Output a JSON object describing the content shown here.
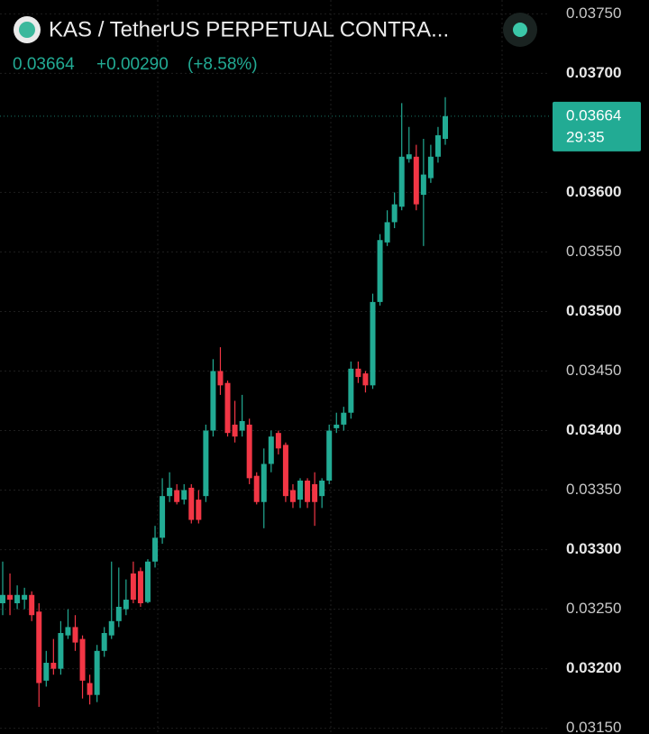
{
  "chart_data": {
    "type": "candlestick",
    "title": "KAS / TetherUS PERPETUAL CONTRA...",
    "price": "0.03664",
    "change": "+0.00290",
    "change_pct": "(+8.58%)",
    "price_tag": {
      "price": "0.03664",
      "countdown": "29:35"
    },
    "up_color": "#22ab94",
    "down_color": "#f23645",
    "grid": true,
    "ylim": [
      0.031452,
      0.037616
    ],
    "yticks": [
      {
        "value": 0.0375,
        "label": "0.03750"
      },
      {
        "value": 0.037,
        "label": "0.03700"
      },
      {
        "value": 0.036,
        "label": "0.03600"
      },
      {
        "value": 0.0355,
        "label": "0.03550"
      },
      {
        "value": 0.035,
        "label": "0.03500"
      },
      {
        "value": 0.0345,
        "label": "0.03450"
      },
      {
        "value": 0.034,
        "label": "0.03400"
      },
      {
        "value": 0.0335,
        "label": "0.03350"
      },
      {
        "value": 0.033,
        "label": "0.03300"
      },
      {
        "value": 0.0325,
        "label": "0.03250"
      },
      {
        "value": 0.032,
        "label": "0.03200"
      },
      {
        "value": 0.0315,
        "label": "0.03150"
      }
    ],
    "open": [
      0.03255,
      0.03262,
      0.03255,
      0.03258,
      0.03262,
      0.03248,
      0.0319,
      0.03205,
      0.032,
      0.03228,
      0.03235,
      0.03225,
      0.03188,
      0.03178,
      0.03215,
      0.03228,
      0.0324,
      0.0325,
      0.0328,
      0.03282,
      0.03256,
      0.0329,
      0.0331,
      0.03345,
      0.0335,
      0.03342,
      0.03352,
      0.03342,
      0.03345,
      0.034,
      0.0345,
      0.0344,
      0.03405,
      0.034,
      0.03405,
      0.03362,
      0.0334,
      0.03372,
      0.03398,
      0.03388,
      0.0335,
      0.03342,
      0.03358,
      0.03355,
      0.03345,
      0.03358,
      0.03402,
      0.03405,
      0.03415,
      0.03452,
      0.03448,
      0.03438,
      0.03508,
      0.03558,
      0.03575,
      0.03588,
      0.03628,
      0.0363,
      0.03598,
      0.03612,
      0.0363,
      0.03645
    ],
    "high": [
      0.0329,
      0.0328,
      0.0327,
      0.03268,
      0.03265,
      0.03255,
      0.03215,
      0.03225,
      0.0324,
      0.0325,
      0.03245,
      0.03228,
      0.03195,
      0.0322,
      0.03235,
      0.0329,
      0.03285,
      0.03275,
      0.0329,
      0.03285,
      0.03292,
      0.0332,
      0.0336,
      0.03365,
      0.03355,
      0.03355,
      0.03355,
      0.0335,
      0.03405,
      0.0346,
      0.0347,
      0.03442,
      0.03425,
      0.0343,
      0.0341,
      0.03365,
      0.03385,
      0.034,
      0.034,
      0.0339,
      0.03355,
      0.0336,
      0.0336,
      0.03365,
      0.0336,
      0.03405,
      0.03415,
      0.0342,
      0.03458,
      0.03458,
      0.0345,
      0.03515,
      0.03565,
      0.03585,
      0.036,
      0.03675,
      0.03655,
      0.0364,
      0.03645,
      0.0364,
      0.03655,
      0.0368
    ],
    "low": [
      0.03245,
      0.03245,
      0.0325,
      0.0325,
      0.0324,
      0.03168,
      0.03185,
      0.03195,
      0.03195,
      0.03225,
      0.03215,
      0.03175,
      0.0317,
      0.03172,
      0.0321,
      0.03225,
      0.03235,
      0.03245,
      0.03255,
      0.03252,
      0.03255,
      0.03285,
      0.03305,
      0.0334,
      0.03338,
      0.03338,
      0.03322,
      0.03322,
      0.0334,
      0.03395,
      0.0343,
      0.03395,
      0.0339,
      0.03395,
      0.03355,
      0.03338,
      0.03318,
      0.03365,
      0.0338,
      0.0334,
      0.03335,
      0.03335,
      0.03335,
      0.0332,
      0.03335,
      0.03355,
      0.03398,
      0.034,
      0.0341,
      0.0344,
      0.03432,
      0.03435,
      0.03505,
      0.03555,
      0.0357,
      0.03585,
      0.03625,
      0.03585,
      0.03555,
      0.03608,
      0.03625,
      0.0364
    ],
    "close": [
      0.03262,
      0.03258,
      0.03262,
      0.03262,
      0.03245,
      0.03188,
      0.03205,
      0.032,
      0.0323,
      0.03235,
      0.03222,
      0.0319,
      0.03178,
      0.03215,
      0.0323,
      0.0324,
      0.03252,
      0.03258,
      0.03258,
      0.03255,
      0.0329,
      0.0331,
      0.03345,
      0.03352,
      0.0334,
      0.0335,
      0.03325,
      0.03325,
      0.034,
      0.0345,
      0.03438,
      0.03398,
      0.03395,
      0.03408,
      0.0336,
      0.0334,
      0.03372,
      0.03395,
      0.03385,
      0.03345,
      0.0334,
      0.03358,
      0.0334,
      0.0334,
      0.03358,
      0.034,
      0.03405,
      0.03415,
      0.03452,
      0.03445,
      0.03438,
      0.03508,
      0.0356,
      0.03575,
      0.0359,
      0.0363,
      0.03632,
      0.0359,
      0.03615,
      0.0363,
      0.03648,
      0.03664
    ]
  }
}
